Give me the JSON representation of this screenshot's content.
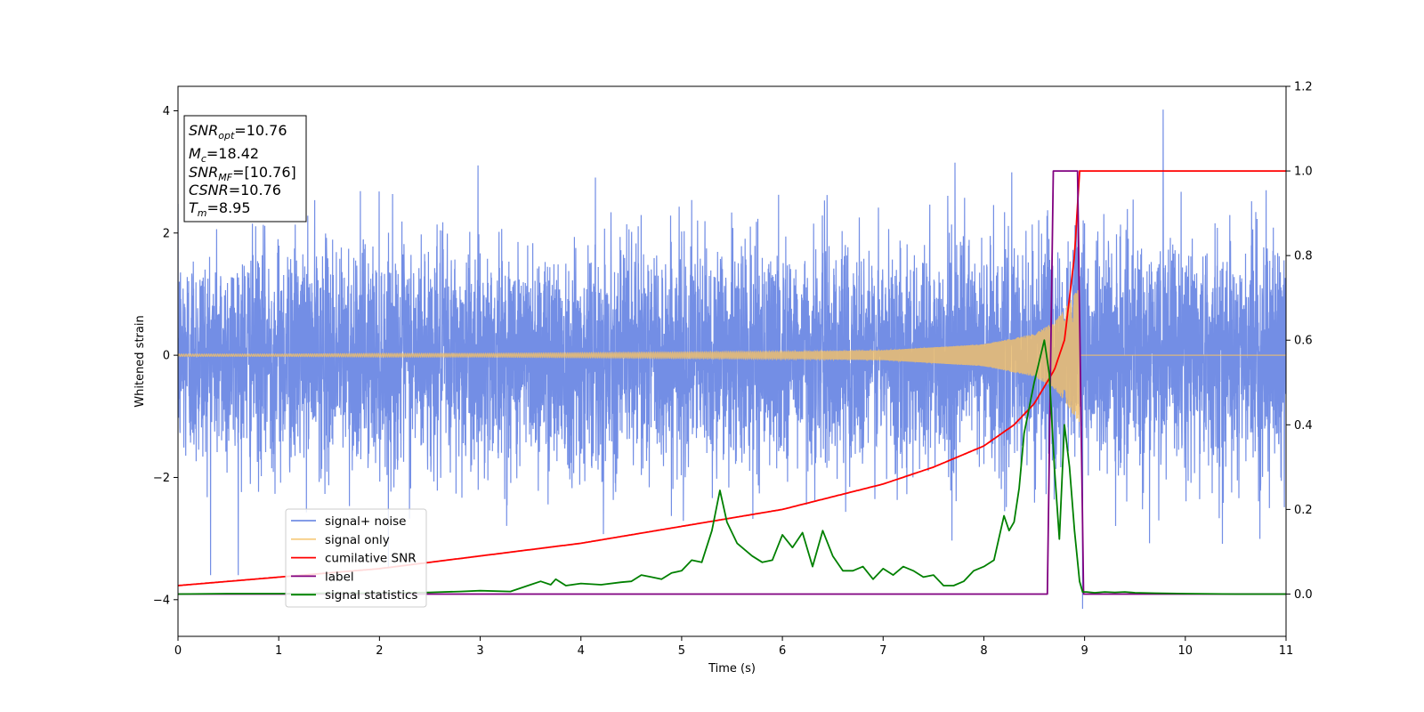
{
  "chart_data": {
    "type": "line",
    "title": "",
    "xlabel": "Time (s)",
    "ylabel": "Whitened strain",
    "xlim": [
      0,
      11
    ],
    "ylim_left": [
      -4.6,
      4.4
    ],
    "ylim_right": [
      -0.1,
      1.2
    ],
    "x_ticks": [
      "0",
      "1",
      "2",
      "3",
      "4",
      "5",
      "6",
      "7",
      "8",
      "9",
      "10",
      "11"
    ],
    "y_ticks_left": [
      "4",
      "2",
      "0",
      "−2",
      "−4"
    ],
    "y_ticks_right": [
      "1.2",
      "1.0",
      "0.8",
      "0.6",
      "0.4",
      "0.2",
      "0.0"
    ],
    "grid": false,
    "legend_position": "lower-left",
    "annotation": {
      "lines": [
        {
          "italic": "SNR",
          "sub": "opt",
          "rest": "=10.76"
        },
        {
          "italic": "M",
          "sub": "c",
          "rest": "=18.42"
        },
        {
          "italic": "SNR",
          "sub": "MF",
          "rest": "=[10.76]"
        },
        {
          "italic": "CSNR",
          "sub": "",
          "rest": "=10.76"
        },
        {
          "italic": "T",
          "sub": "m",
          "rest": "=8.95"
        }
      ]
    },
    "series": [
      {
        "name": "signal+ noise",
        "color": "#6c88e4",
        "axis": "left",
        "noise_std": 0.9,
        "noise_peak_max": 4.02,
        "noise_peak_min": -4.15
      },
      {
        "name": "signal only",
        "color": "#f5c266",
        "axis": "left",
        "envelope_t": [
          0,
          1,
          2,
          3,
          4,
          5,
          6,
          7,
          8,
          8.5,
          8.7,
          8.8,
          8.9,
          8.95
        ],
        "envelope_amp": [
          0.02,
          0.02,
          0.03,
          0.03,
          0.04,
          0.05,
          0.06,
          0.08,
          0.18,
          0.35,
          0.55,
          0.75,
          1.0,
          1.1
        ]
      },
      {
        "name": "cumilative SNR",
        "color": "#ff0000",
        "axis": "right",
        "x": [
          0,
          1,
          2,
          3,
          4,
          5,
          6,
          7,
          7.5,
          8,
          8.3,
          8.5,
          8.7,
          8.8,
          8.9,
          8.95,
          11
        ],
        "y": [
          0.02,
          0.04,
          0.06,
          0.09,
          0.12,
          0.16,
          0.2,
          0.26,
          0.3,
          0.35,
          0.4,
          0.45,
          0.53,
          0.6,
          0.8,
          1.0,
          1.0
        ]
      },
      {
        "name": "label",
        "color": "#800080",
        "axis": "right",
        "x": [
          0,
          8.63,
          8.69,
          8.93,
          8.99,
          11
        ],
        "y": [
          0,
          0,
          1,
          1,
          0,
          0
        ]
      },
      {
        "name": "signal statistics",
        "color": "#008000",
        "axis": "right",
        "x": [
          0,
          0.5,
          1,
          1.5,
          2,
          2.5,
          2.8,
          3,
          3.3,
          3.5,
          3.6,
          3.7,
          3.75,
          3.85,
          4,
          4.2,
          4.4,
          4.5,
          4.6,
          4.7,
          4.8,
          4.9,
          5,
          5.1,
          5.2,
          5.3,
          5.38,
          5.45,
          5.55,
          5.7,
          5.8,
          5.9,
          6,
          6.1,
          6.2,
          6.3,
          6.4,
          6.5,
          6.6,
          6.7,
          6.8,
          6.9,
          7,
          7.1,
          7.2,
          7.3,
          7.4,
          7.5,
          7.6,
          7.7,
          7.8,
          7.9,
          8,
          8.1,
          8.2,
          8.25,
          8.3,
          8.35,
          8.4,
          8.5,
          8.6,
          8.65,
          8.7,
          8.75,
          8.8,
          8.85,
          8.9,
          8.95,
          8.98,
          9.02,
          9.1,
          9.2,
          9.3,
          9.4,
          9.5,
          9.7,
          10,
          10.5,
          11
        ],
        "y": [
          0,
          0.001,
          0.001,
          0.002,
          0.002,
          0.004,
          0.006,
          0.008,
          0.006,
          0.022,
          0.03,
          0.022,
          0.035,
          0.02,
          0.025,
          0.022,
          0.028,
          0.03,
          0.045,
          0.04,
          0.035,
          0.05,
          0.055,
          0.08,
          0.075,
          0.15,
          0.245,
          0.17,
          0.12,
          0.09,
          0.075,
          0.08,
          0.14,
          0.11,
          0.145,
          0.065,
          0.15,
          0.09,
          0.055,
          0.055,
          0.065,
          0.035,
          0.06,
          0.045,
          0.065,
          0.055,
          0.04,
          0.045,
          0.02,
          0.02,
          0.03,
          0.055,
          0.065,
          0.08,
          0.185,
          0.15,
          0.17,
          0.25,
          0.38,
          0.5,
          0.6,
          0.52,
          0.3,
          0.13,
          0.4,
          0.3,
          0.15,
          0.03,
          0.005,
          0.005,
          0.003,
          0.005,
          0.004,
          0.005,
          0.003,
          0.002,
          0.001,
          0,
          0
        ]
      }
    ]
  }
}
